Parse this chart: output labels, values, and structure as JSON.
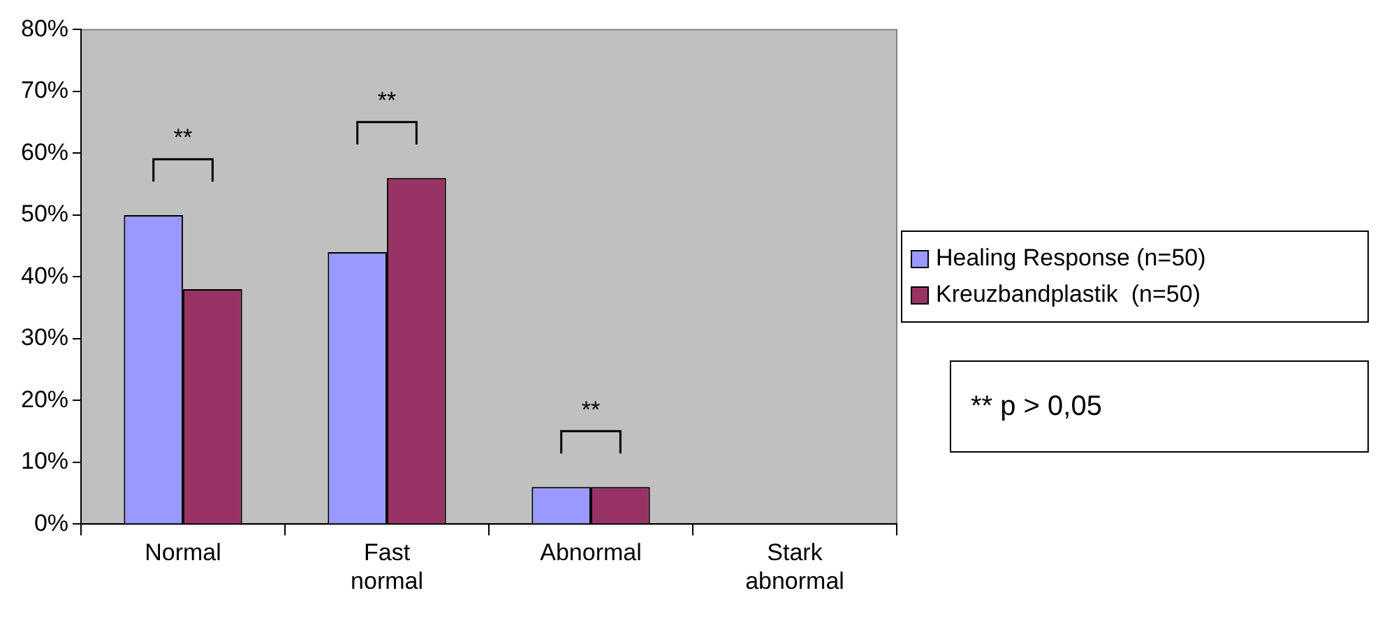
{
  "chart_data": {
    "type": "bar",
    "categories": [
      "Normal",
      "Fast normal",
      "Abnormal",
      "Stark abnormal"
    ],
    "series": [
      {
        "name": "Healing Response (n=50)",
        "color": "#9999ff",
        "values": [
          50,
          44,
          6,
          0
        ]
      },
      {
        "name": "Kreuzbandplastik  (n=50)",
        "color": "#993366",
        "values": [
          38,
          56,
          6,
          0
        ]
      }
    ],
    "ylim": [
      0,
      80
    ],
    "yticks": [
      {
        "value": 0,
        "label": "0%"
      },
      {
        "value": 10,
        "label": "10%"
      },
      {
        "value": 20,
        "label": "20%"
      },
      {
        "value": 30,
        "label": "30%"
      },
      {
        "value": 40,
        "label": "40%"
      },
      {
        "value": 50,
        "label": "50%"
      },
      {
        "value": 60,
        "label": "60%"
      },
      {
        "value": 70,
        "label": "70%"
      },
      {
        "value": 80,
        "label": "80%"
      }
    ],
    "grid": false,
    "legend": "right",
    "annotations": [
      "**",
      "**",
      "**",
      "** p > 0,05"
    ]
  }
}
